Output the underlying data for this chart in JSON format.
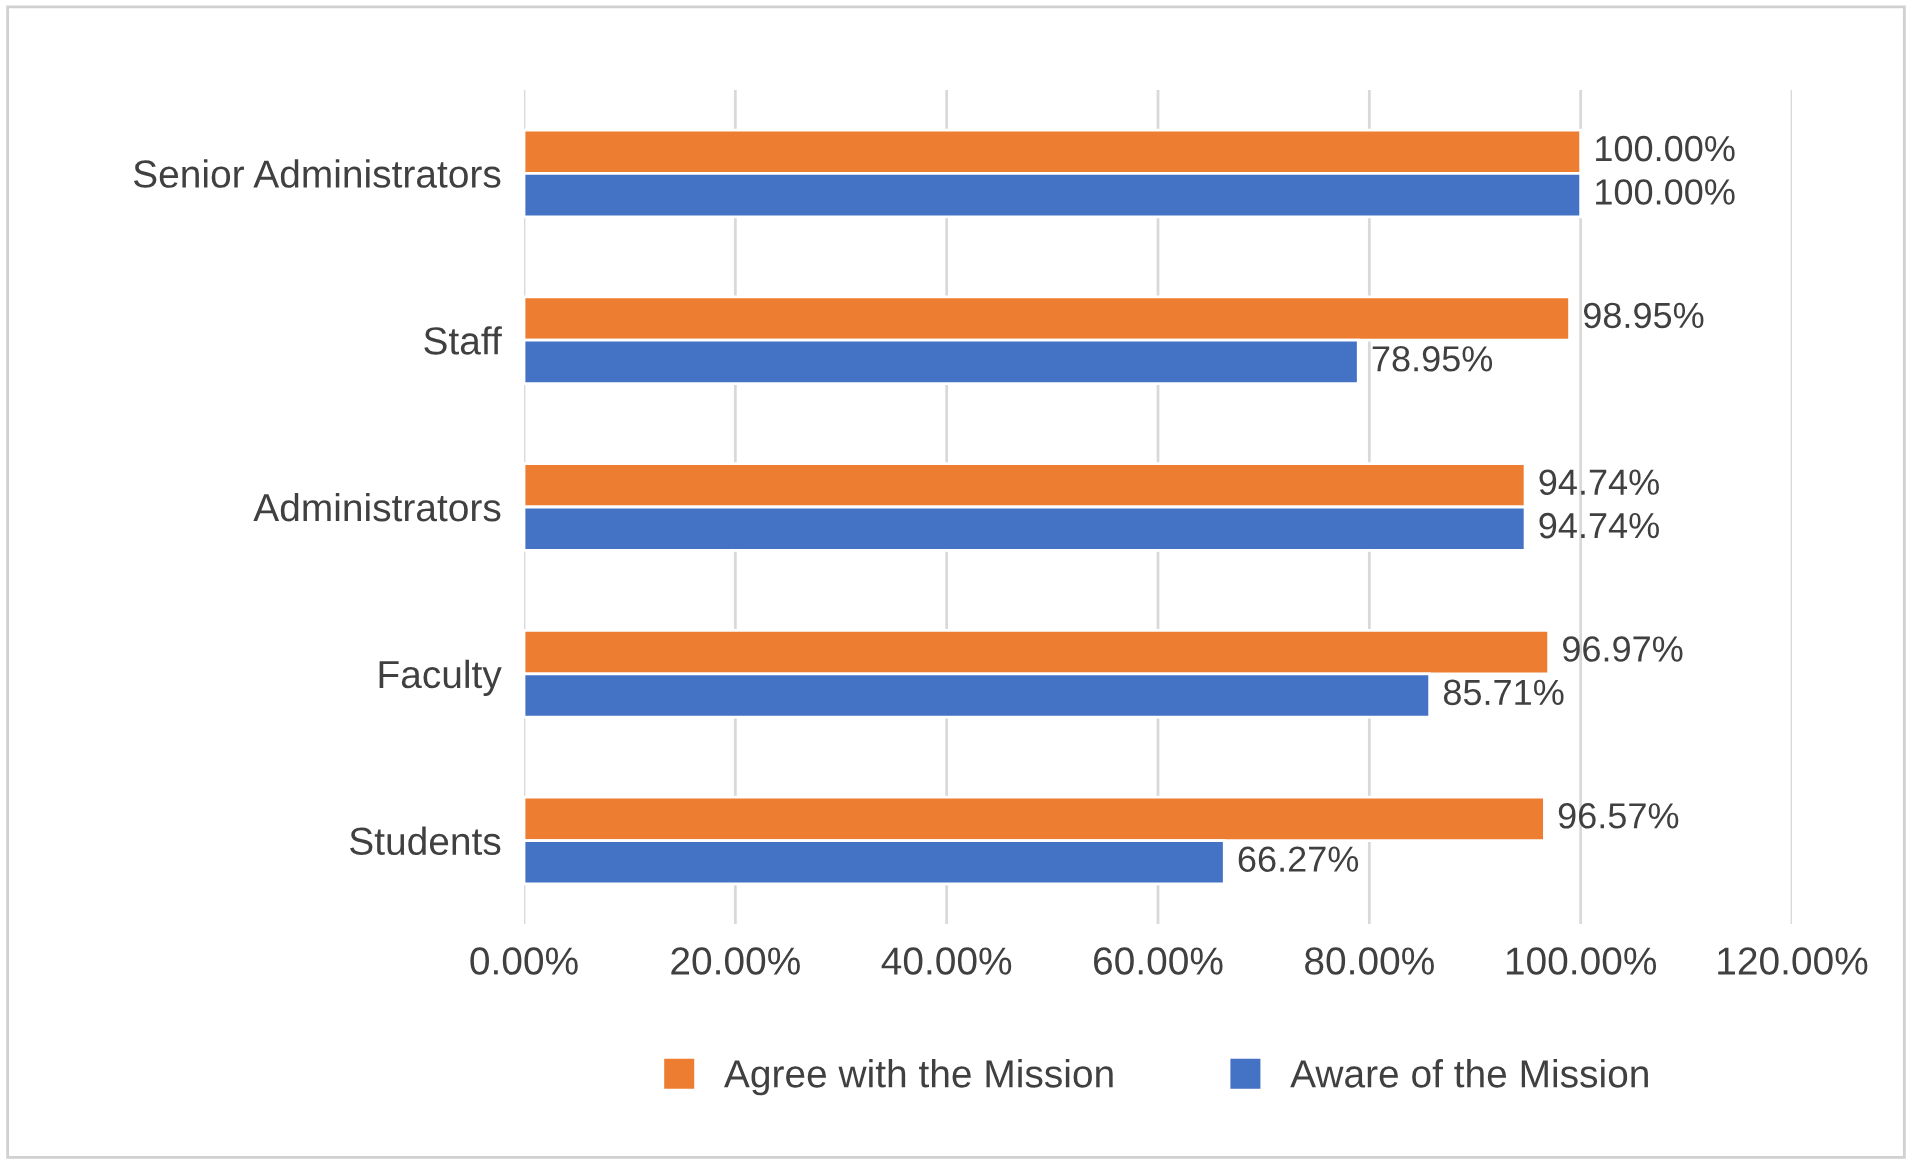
{
  "chart_data": {
    "type": "bar",
    "orientation": "horizontal",
    "categories": [
      "Senior Administrators",
      "Staff",
      "Administrators",
      "Faculty",
      "Students"
    ],
    "series": [
      {
        "name": "Agree with the Mission",
        "color": "#ed7d31",
        "values": [
          100,
          98.95,
          94.74,
          96.97,
          96.57
        ],
        "value_labels": [
          "100.00%",
          "98.95%",
          "94.74%",
          "96.97%",
          "96.57%"
        ]
      },
      {
        "name": "Aware of the Mission",
        "color": "#4472c4",
        "values": [
          100,
          78.95,
          94.74,
          85.71,
          66.27
        ],
        "value_labels": [
          "100.00%",
          "78.95%",
          "94.74%",
          "85.71%",
          "66.27%"
        ]
      }
    ],
    "xlim": [
      0,
      120
    ],
    "xticks": [
      {
        "value": 0,
        "label": "0.00%"
      },
      {
        "value": 20,
        "label": "20.00%"
      },
      {
        "value": 40,
        "label": "40.00%"
      },
      {
        "value": 60,
        "label": "60.00%"
      },
      {
        "value": 80,
        "label": "80.00%"
      },
      {
        "value": 100,
        "label": "100.00%"
      },
      {
        "value": 120,
        "label": "120.00%"
      }
    ],
    "grid": "x",
    "legend": "bottom"
  }
}
